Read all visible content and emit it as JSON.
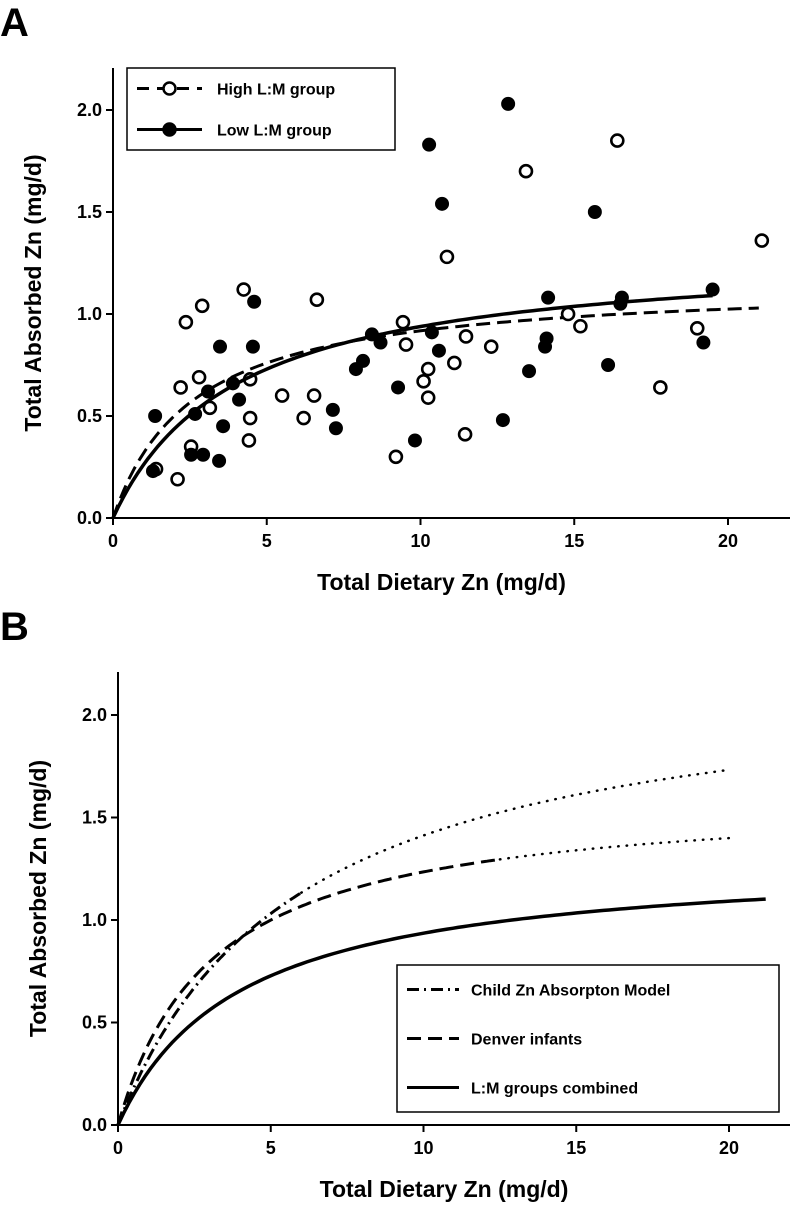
{
  "chart_data": [
    {
      "panel_label": "A",
      "type": "scatter",
      "xlabel": "Total Dietary Zn (mg/d)",
      "ylabel": "Total Absorbed Zn (mg/d)",
      "xlim": [
        0,
        22
      ],
      "ylim": [
        0,
        2.2
      ],
      "xticks": [
        "0",
        "5",
        "10",
        "15",
        "20"
      ],
      "yticks": [
        "0.0",
        "0.5",
        "1.0",
        "1.5",
        "2.0"
      ],
      "grid": false,
      "legend_position": "top-left",
      "series": [
        {
          "name": "High L:M group",
          "marker": "open-circle",
          "line": "dashed",
          "fit": {
            "model": "saturating",
            "vmax": 1.158,
            "k": 2.62,
            "x_max": 21
          },
          "points": [
            [
              4.25,
              1.12
            ],
            [
              2.9,
              1.04
            ],
            [
              2.37,
              0.96
            ],
            [
              6.63,
              1.07
            ],
            [
              9.43,
              0.96
            ],
            [
              9.53,
              0.85
            ],
            [
              2.8,
              0.69
            ],
            [
              2.2,
              0.64
            ],
            [
              4.46,
              0.68
            ],
            [
              5.5,
              0.6
            ],
            [
              6.54,
              0.6
            ],
            [
              3.15,
              0.54
            ],
            [
              4.46,
              0.49
            ],
            [
              6.2,
              0.49
            ],
            [
              4.42,
              0.38
            ],
            [
              2.54,
              0.35
            ],
            [
              1.4,
              0.24
            ],
            [
              2.1,
              0.19
            ],
            [
              9.2,
              0.3
            ],
            [
              16.4,
              1.85
            ],
            [
              13.43,
              1.7
            ],
            [
              21.1,
              1.36
            ],
            [
              10.86,
              1.28
            ],
            [
              11.48,
              0.89
            ],
            [
              12.3,
              0.84
            ],
            [
              14.8,
              1.0
            ],
            [
              15.2,
              0.94
            ],
            [
              19.0,
              0.93
            ],
            [
              10.25,
              0.73
            ],
            [
              10.1,
              0.67
            ],
            [
              10.25,
              0.59
            ],
            [
              11.1,
              0.76
            ],
            [
              17.8,
              0.64
            ],
            [
              11.45,
              0.41
            ]
          ]
        },
        {
          "name": "Low L:M group",
          "marker": "filled-circle",
          "line": "solid",
          "fit": {
            "model": "saturating",
            "vmax": 1.314,
            "k": 4.0,
            "x_max": 19.5
          },
          "points": [
            [
              4.59,
              1.06
            ],
            [
              3.48,
              0.84
            ],
            [
              4.55,
              0.84
            ],
            [
              3.09,
              0.62
            ],
            [
              3.9,
              0.66
            ],
            [
              4.1,
              0.58
            ],
            [
              2.67,
              0.51
            ],
            [
              1.37,
              0.5
            ],
            [
              3.58,
              0.45
            ],
            [
              2.54,
              0.31
            ],
            [
              2.93,
              0.31
            ],
            [
              3.45,
              0.28
            ],
            [
              1.3,
              0.23
            ],
            [
              8.42,
              0.9
            ],
            [
              8.7,
              0.86
            ],
            [
              8.13,
              0.77
            ],
            [
              7.9,
              0.73
            ],
            [
              9.27,
              0.64
            ],
            [
              7.15,
              0.53
            ],
            [
              7.25,
              0.44
            ],
            [
              12.85,
              2.03
            ],
            [
              10.28,
              1.83
            ],
            [
              10.7,
              1.54
            ],
            [
              15.67,
              1.5
            ],
            [
              14.15,
              1.08
            ],
            [
              16.55,
              1.08
            ],
            [
              16.5,
              1.05
            ],
            [
              19.5,
              1.12
            ],
            [
              19.2,
              0.86
            ],
            [
              10.37,
              0.91
            ],
            [
              10.6,
              0.82
            ],
            [
              14.1,
              0.88
            ],
            [
              14.05,
              0.84
            ],
            [
              13.53,
              0.72
            ],
            [
              16.1,
              0.75
            ],
            [
              12.68,
              0.48
            ],
            [
              9.82,
              0.38
            ]
          ]
        }
      ]
    },
    {
      "panel_label": "B",
      "type": "line",
      "xlabel": "Total Dietary Zn (mg/d)",
      "ylabel": "Total Absorbed Zn (mg/d)",
      "xlim": [
        0,
        22
      ],
      "ylim": [
        0,
        2.2
      ],
      "xticks": [
        "0",
        "5",
        "10",
        "15",
        "20"
      ],
      "yticks": [
        "0.0",
        "0.5",
        "1.0",
        "1.5",
        "2.0"
      ],
      "grid": false,
      "legend_position": "bottom-right",
      "series": [
        {
          "name": "Child Zn Absorpton Model",
          "line": "dash-dot",
          "extrapolated_line": "dotted",
          "fit": {
            "model": "saturating",
            "vmax": 2.24,
            "k": 5.86,
            "x_max": 20,
            "x_observed_max": 6
          }
        },
        {
          "name": "Denver infants",
          "line": "dashed",
          "extrapolated_line": "dotted",
          "fit": {
            "model": "saturating",
            "vmax": 1.615,
            "k": 3.08,
            "x_max": 20,
            "x_observed_max": 12.5
          }
        },
        {
          "name": "L:M groups combined",
          "line": "solid",
          "fit": {
            "model": "saturating",
            "vmax": 1.31,
            "k": 4.0,
            "x_max": 21.2
          }
        }
      ]
    }
  ]
}
